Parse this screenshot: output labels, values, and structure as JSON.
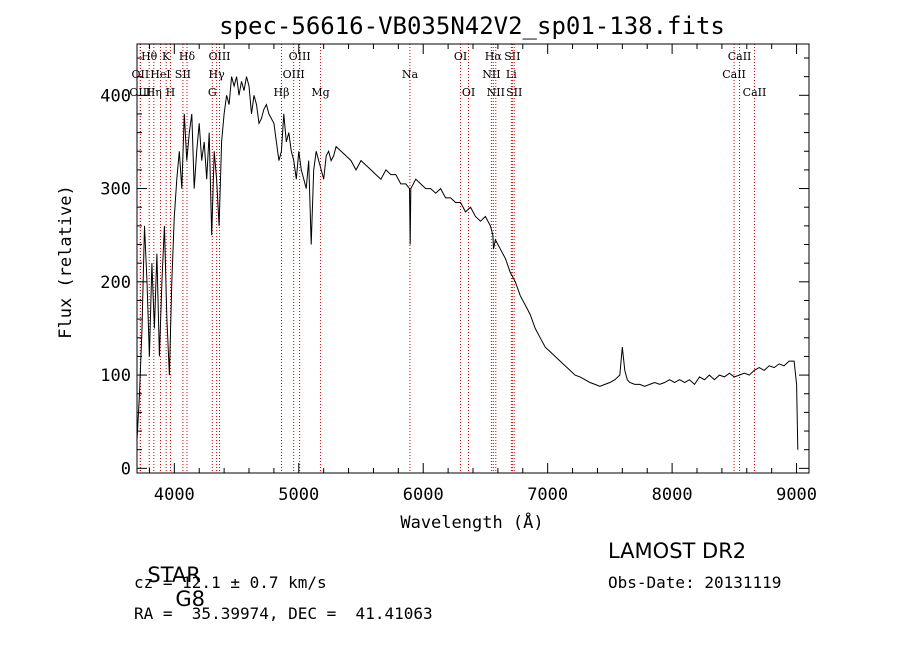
{
  "chart_data": {
    "type": "line",
    "title": "spec-56616-VB035N42V2_sp01-138.fits",
    "xlabel": "Wavelength (Å)",
    "ylabel": "Flux (relative)",
    "xlim": [
      3700,
      9100
    ],
    "ylim": [
      -5,
      455
    ],
    "xticks": [
      4000,
      5000,
      6000,
      7000,
      8000,
      9000
    ],
    "yticks": [
      0,
      100,
      200,
      300,
      400
    ],
    "spectrum": {
      "x": [
        3700,
        3720,
        3740,
        3760,
        3780,
        3800,
        3820,
        3840,
        3860,
        3880,
        3900,
        3920,
        3940,
        3960,
        3980,
        4000,
        4020,
        4040,
        4060,
        4080,
        4100,
        4120,
        4140,
        4160,
        4180,
        4200,
        4220,
        4240,
        4260,
        4280,
        4300,
        4320,
        4340,
        4360,
        4380,
        4400,
        4420,
        4440,
        4460,
        4480,
        4500,
        4520,
        4540,
        4560,
        4580,
        4600,
        4620,
        4640,
        4660,
        4680,
        4700,
        4720,
        4740,
        4760,
        4780,
        4800,
        4820,
        4840,
        4860,
        4880,
        4900,
        4920,
        4940,
        4960,
        4980,
        5000,
        5020,
        5040,
        5060,
        5080,
        5100,
        5120,
        5140,
        5160,
        5180,
        5200,
        5220,
        5240,
        5260,
        5280,
        5300,
        5340,
        5380,
        5420,
        5460,
        5500,
        5540,
        5580,
        5620,
        5660,
        5700,
        5740,
        5780,
        5820,
        5860,
        5890,
        5895,
        5900,
        5940,
        5980,
        6020,
        6060,
        6100,
        6140,
        6180,
        6220,
        6260,
        6300,
        6340,
        6380,
        6420,
        6460,
        6500,
        6540,
        6560,
        6565,
        6580,
        6600,
        6620,
        6660,
        6700,
        6740,
        6780,
        6820,
        6860,
        6900,
        6940,
        6980,
        7020,
        7060,
        7100,
        7140,
        7180,
        7220,
        7260,
        7300,
        7340,
        7380,
        7420,
        7460,
        7500,
        7540,
        7580,
        7600,
        7620,
        7640,
        7660,
        7700,
        7740,
        7780,
        7820,
        7860,
        7900,
        7940,
        7980,
        8020,
        8060,
        8100,
        8140,
        8180,
        8220,
        8260,
        8300,
        8340,
        8380,
        8420,
        8460,
        8500,
        8540,
        8580,
        8620,
        8660,
        8700,
        8740,
        8780,
        8820,
        8860,
        8900,
        8940,
        8980,
        9000,
        9010
      ],
      "y": [
        30,
        80,
        150,
        260,
        200,
        120,
        220,
        150,
        230,
        120,
        200,
        260,
        160,
        100,
        200,
        270,
        310,
        340,
        300,
        380,
        330,
        360,
        380,
        300,
        340,
        370,
        330,
        350,
        310,
        360,
        250,
        340,
        310,
        260,
        350,
        380,
        400,
        390,
        420,
        410,
        420,
        400,
        415,
        405,
        420,
        410,
        380,
        400,
        390,
        370,
        375,
        385,
        390,
        380,
        375,
        370,
        350,
        330,
        340,
        380,
        350,
        360,
        340,
        330,
        310,
        340,
        320,
        310,
        300,
        330,
        240,
        320,
        340,
        330,
        320,
        310,
        335,
        340,
        330,
        335,
        345,
        340,
        335,
        330,
        320,
        330,
        325,
        320,
        315,
        310,
        320,
        315,
        315,
        305,
        305,
        300,
        240,
        300,
        310,
        305,
        300,
        300,
        295,
        300,
        290,
        290,
        285,
        285,
        275,
        280,
        270,
        265,
        270,
        260,
        250,
        235,
        245,
        240,
        235,
        225,
        210,
        200,
        185,
        175,
        165,
        150,
        140,
        130,
        125,
        120,
        115,
        110,
        105,
        100,
        98,
        95,
        92,
        90,
        88,
        90,
        92,
        95,
        100,
        130,
        105,
        95,
        92,
        90,
        90,
        88,
        90,
        92,
        90,
        92,
        95,
        92,
        95,
        92,
        95,
        90,
        98,
        95,
        100,
        95,
        100,
        98,
        102,
        98,
        100,
        102,
        100,
        105,
        108,
        105,
        110,
        108,
        112,
        110,
        115,
        115,
        90,
        20
      ]
    },
    "lines": [
      {
        "name": "Hθ",
        "wl": 3798,
        "row": 1
      },
      {
        "name": "OII",
        "wl": 3727,
        "row": 2
      },
      {
        "name": "OIII",
        "wl": 3727,
        "row": 3
      },
      {
        "name": "K",
        "wl": 3934,
        "row": 1
      },
      {
        "name": "HeI",
        "wl": 3889,
        "row": 2
      },
      {
        "name": "Hη",
        "wl": 3835,
        "row": 3
      },
      {
        "name": "Hδ",
        "wl": 4102,
        "row": 1
      },
      {
        "name": "SII",
        "wl": 4069,
        "row": 2
      },
      {
        "name": "H",
        "wl": 3969,
        "row": 3
      },
      {
        "name": "OIII",
        "wl": 4363,
        "row": 1
      },
      {
        "name": "Hγ",
        "wl": 4340,
        "row": 2
      },
      {
        "name": "G",
        "wl": 4305,
        "row": 3
      },
      {
        "name": "Hβ",
        "wl": 4861,
        "row": 3
      },
      {
        "name": "OIII",
        "wl": 5007,
        "row": 1
      },
      {
        "name": "OIII",
        "wl": 4959,
        "row": 2
      },
      {
        "name": "Mg",
        "wl": 5175,
        "row": 3
      },
      {
        "name": "Na",
        "wl": 5893,
        "row": 2
      },
      {
        "name": "OI",
        "wl": 6300,
        "row": 1
      },
      {
        "name": "OI",
        "wl": 6364,
        "row": 3
      },
      {
        "name": "Hα",
        "wl": 6563,
        "row": 1
      },
      {
        "name": "NII",
        "wl": 6548,
        "row": 2
      },
      {
        "name": "NII",
        "wl": 6583,
        "row": 3
      },
      {
        "name": "SII",
        "wl": 6716,
        "row": 1
      },
      {
        "name": "Li",
        "wl": 6708,
        "row": 2
      },
      {
        "name": "SII",
        "wl": 6731,
        "row": 3
      },
      {
        "name": "CaII",
        "wl": 8542,
        "row": 1
      },
      {
        "name": "CaII",
        "wl": 8498,
        "row": 2
      },
      {
        "name": "CaII",
        "wl": 8662,
        "row": 3
      }
    ],
    "line_color": "#cc0000",
    "grid": false
  },
  "info": {
    "class_label": "STAR",
    "subclass": "G8",
    "survey": "LAMOST DR2",
    "cz": "cz = 12.1 ± 0.7 km/s",
    "obs_date": "Obs-Date: 20131119",
    "coords": "RA =  35.39974, DEC =  41.41063"
  }
}
